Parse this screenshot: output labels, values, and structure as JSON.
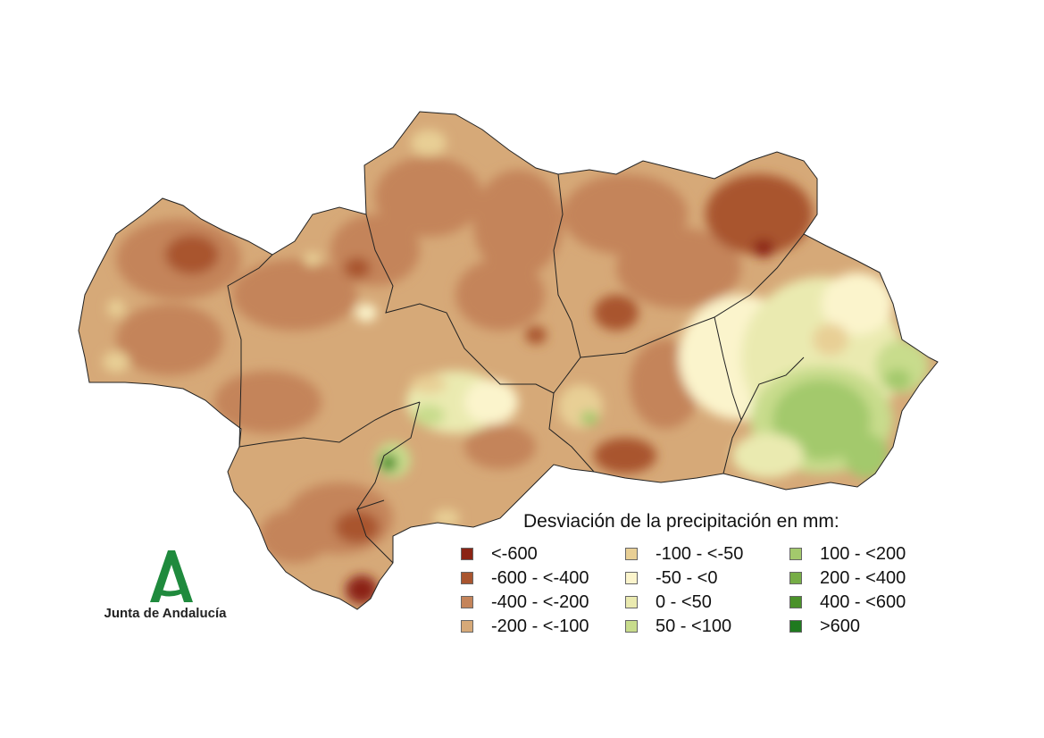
{
  "legend": {
    "title": "Desviación de la precipitación en mm:",
    "items": [
      {
        "label": "<-600",
        "color": "#8b2414"
      },
      {
        "label": "-600 - <-400",
        "color": "#a9552f"
      },
      {
        "label": "-400 - <-200",
        "color": "#c4845a"
      },
      {
        "label": "-200 - <-100",
        "color": "#d6a978"
      },
      {
        "label": "-100 - <-50",
        "color": "#e8cf95"
      },
      {
        "label": "-50 - <0",
        "color": "#fbf4cc"
      },
      {
        "label": "0 - <50",
        "color": "#eaeab0"
      },
      {
        "label": "50 - <100",
        "color": "#c8dc8c"
      },
      {
        "label": "100 - <200",
        "color": "#a3c96c"
      },
      {
        "label": "200 - <400",
        "color": "#76ad46"
      },
      {
        "label": "400 - <600",
        "color": "#4a9129"
      },
      {
        "label": ">600",
        "color": "#1f7a1f"
      }
    ]
  },
  "logo": {
    "text": "Junta de Andalucía",
    "color": "#1f8a3d"
  },
  "map": {
    "boundary_color": "#222222"
  }
}
